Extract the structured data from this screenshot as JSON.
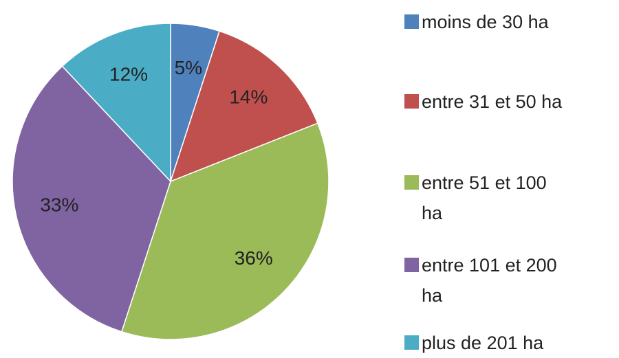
{
  "chart_data": {
    "type": "pie",
    "categories": [
      "moins de 30 ha",
      "entre 31 et 50 ha",
      "entre 51 et 100 ha",
      "entre 101 et 200 ha",
      "plus de 201 ha"
    ],
    "values": [
      5,
      14,
      36,
      33,
      12
    ],
    "value_labels": [
      "5%",
      "14%",
      "36%",
      "33%",
      "12%"
    ],
    "colors": [
      "#4f81bd",
      "#c0504d",
      "#9bbb59",
      "#8064a2",
      "#4bacc6"
    ],
    "legend": "right"
  }
}
